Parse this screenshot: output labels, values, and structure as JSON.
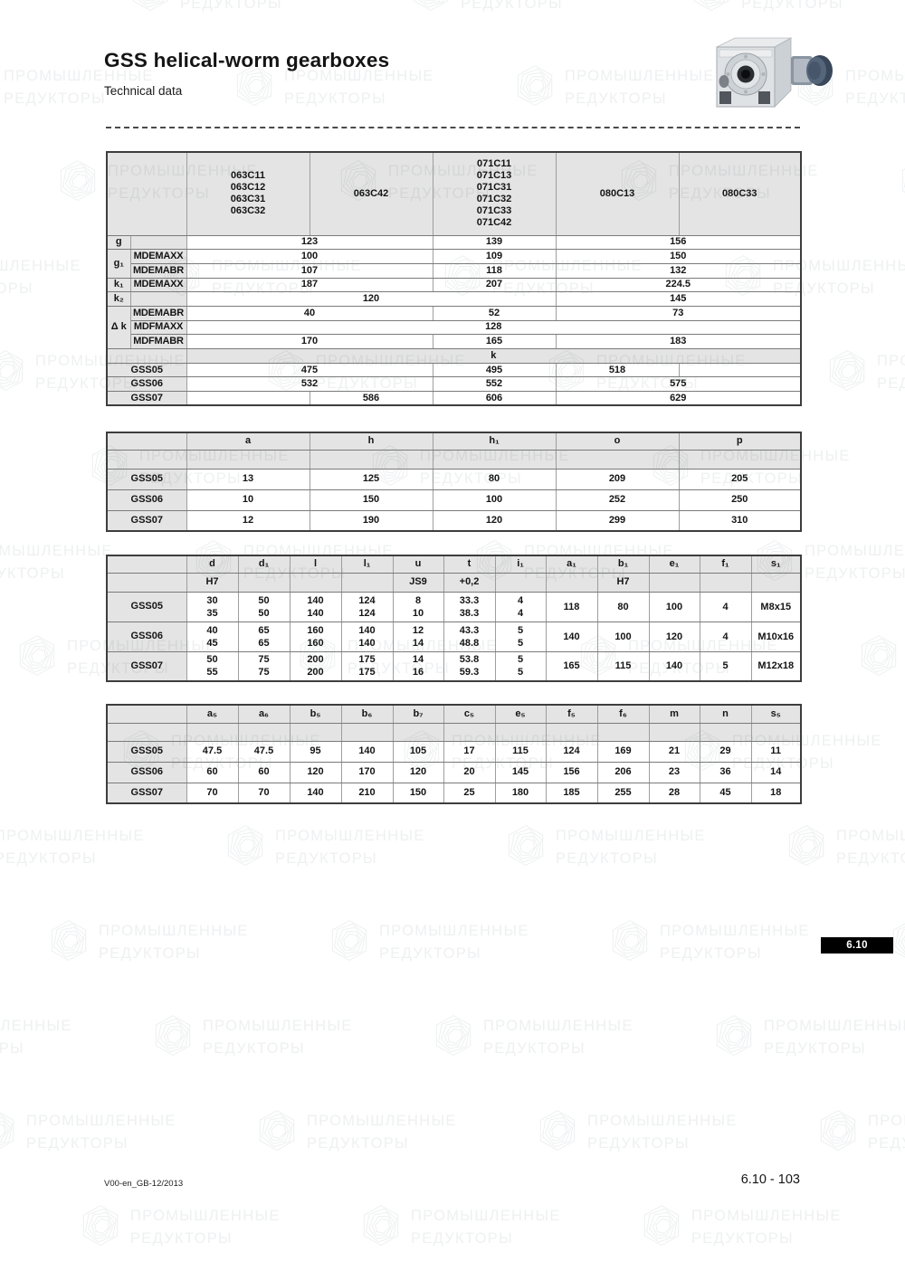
{
  "page": {
    "title": "GSS helical-worm gearboxes",
    "subtitle": "Technical data",
    "tab_number": "6.10",
    "footer_left": "V00-en_GB-12/2013",
    "footer_right": "6.10 - 103"
  },
  "watermark": {
    "line1": "ПРОМЫШЛЕННЫЕ",
    "line2": "РЕДУКТОРЫ"
  },
  "t1": {
    "cols": [
      "063C11\n063C12\n063C31\n063C32",
      "063C42",
      "071C11\n071C13\n071C31\n071C32\n071C33\n071C42",
      "080C13",
      "080C33"
    ],
    "labels": {
      "g": "g",
      "g1": "g₁",
      "k1": "k₁",
      "k2": "k₂",
      "dk": "Δ k",
      "mdemaxx": "MDEMAXX",
      "mdemabr": "MDEMABR",
      "mdfmaxx": "MDFMAXX",
      "mdfmabr": "MDFMABR",
      "band": "k",
      "gss05": "GSS05",
      "gss06": "GSS06",
      "gss07": "GSS07"
    },
    "g": [
      "123",
      "139",
      "156"
    ],
    "g1_mdemaxx": [
      "100",
      "109",
      "150"
    ],
    "g1_mdemabr": [
      "107",
      "118",
      "132"
    ],
    "k1_mdemaxx": [
      "187",
      "207",
      "224.5"
    ],
    "k2": [
      "120",
      "145"
    ],
    "dk_mdemabr": [
      "40",
      "52",
      "73"
    ],
    "dk_mdfmaxx": [
      "128"
    ],
    "dk_mdfmabr": [
      "170",
      "165",
      "183"
    ],
    "gss05": [
      "475",
      "495",
      "518"
    ],
    "gss06": [
      "532",
      "552",
      "575"
    ],
    "gss07": [
      "586",
      "606",
      "629"
    ]
  },
  "t2": {
    "cols": [
      "a",
      "h",
      "h₁",
      "o",
      "p"
    ],
    "rows": [
      {
        "label": "GSS05",
        "v": [
          "13",
          "125",
          "80",
          "209",
          "205"
        ]
      },
      {
        "label": "GSS06",
        "v": [
          "10",
          "150",
          "100",
          "252",
          "250"
        ]
      },
      {
        "label": "GSS07",
        "v": [
          "12",
          "190",
          "120",
          "299",
          "310"
        ]
      }
    ]
  },
  "t3": {
    "cols": [
      "d",
      "d₁",
      "l",
      "l₁",
      "u",
      "t",
      "i₁",
      "a₁",
      "b₁",
      "e₁",
      "f₁",
      "s₁"
    ],
    "sub": [
      "H7",
      "",
      "",
      "",
      "JS9",
      "+0,2",
      "",
      "",
      "H7",
      "",
      "",
      ""
    ],
    "rows": [
      {
        "label": "GSS05",
        "v": [
          "30\n35",
          "50\n50",
          "140\n140",
          "124\n124",
          "8\n10",
          "33.3\n38.3",
          "4\n4",
          "118",
          "80",
          "100",
          "4",
          "M8x15"
        ]
      },
      {
        "label": "GSS06",
        "v": [
          "40\n45",
          "65\n65",
          "160\n160",
          "140\n140",
          "12\n14",
          "43.3\n48.8",
          "5\n5",
          "140",
          "100",
          "120",
          "4",
          "M10x16"
        ]
      },
      {
        "label": "GSS07",
        "v": [
          "50\n55",
          "75\n75",
          "200\n200",
          "175\n175",
          "14\n16",
          "53.8\n59.3",
          "5\n5",
          "165",
          "115",
          "140",
          "5",
          "M12x18"
        ]
      }
    ]
  },
  "t4": {
    "cols": [
      "a₅",
      "a₆",
      "b₅",
      "b₆",
      "b₇",
      "c₅",
      "e₅",
      "f₅",
      "f₆",
      "m",
      "n",
      "s₅"
    ],
    "rows": [
      {
        "label": "GSS05",
        "v": [
          "47.5",
          "47.5",
          "95",
          "140",
          "105",
          "17",
          "115",
          "124",
          "169",
          "21",
          "29",
          "11"
        ]
      },
      {
        "label": "GSS06",
        "v": [
          "60",
          "60",
          "120",
          "170",
          "120",
          "20",
          "145",
          "156",
          "206",
          "23",
          "36",
          "14"
        ]
      },
      {
        "label": "GSS07",
        "v": [
          "70",
          "70",
          "140",
          "210",
          "150",
          "25",
          "180",
          "185",
          "255",
          "28",
          "45",
          "18"
        ]
      }
    ]
  }
}
